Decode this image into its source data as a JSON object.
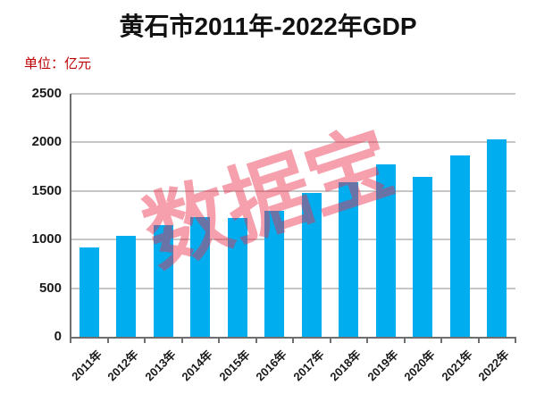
{
  "header": {
    "title": "黄石市2011年-2022年GDP",
    "unit_label": "单位：亿元"
  },
  "watermark": {
    "text": "数据宝",
    "color": "rgba(235,45,75,0.45)"
  },
  "colors": {
    "bar": "#00aeef",
    "gridline": "#c6c6c6",
    "axis": "#6f6f6f",
    "title_text": "#111111",
    "unit_text": "#c00000",
    "tick_text": "#1a1a1a",
    "background": "#ffffff"
  },
  "chart_data": {
    "type": "bar",
    "title": "黄石市2011年-2022年GDP",
    "unit": "亿元",
    "xlabel": "",
    "ylabel": "",
    "categories": [
      "2011年",
      "2012年",
      "2013年",
      "2014年",
      "2015年",
      "2016年",
      "2017年",
      "2018年",
      "2019年",
      "2020年",
      "2021年",
      "2022年"
    ],
    "values": [
      920,
      1035,
      1150,
      1230,
      1225,
      1300,
      1480,
      1590,
      1770,
      1645,
      1865,
      2035
    ],
    "ylim": [
      0,
      2500
    ],
    "yticks": [
      0,
      500,
      1000,
      1500,
      2000,
      2500
    ],
    "grid": true,
    "legend": false
  }
}
